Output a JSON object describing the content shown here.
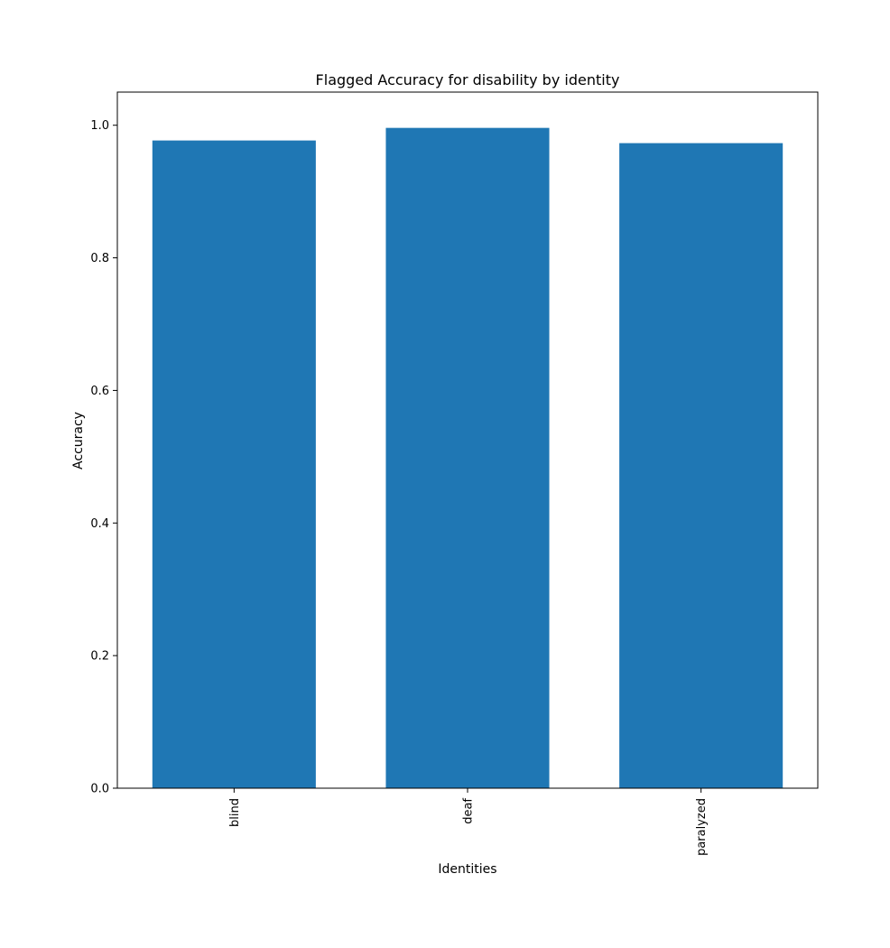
{
  "chart_data": {
    "type": "bar",
    "title": "Flagged Accuracy for disability by identity",
    "xlabel": "Identities",
    "ylabel": "Accuracy",
    "categories": [
      "blind",
      "deaf",
      "paralyzed"
    ],
    "values": [
      0.977,
      0.996,
      0.973
    ],
    "ylim": [
      0,
      1.05
    ],
    "yticks": [
      0.0,
      0.2,
      0.4,
      0.6,
      0.8,
      1.0
    ],
    "ytick_labels": [
      "0.0",
      "0.2",
      "0.4",
      "0.6",
      "0.8",
      "1.0"
    ],
    "grid": false,
    "legend": "none",
    "bar_color": "#1f77b4"
  }
}
